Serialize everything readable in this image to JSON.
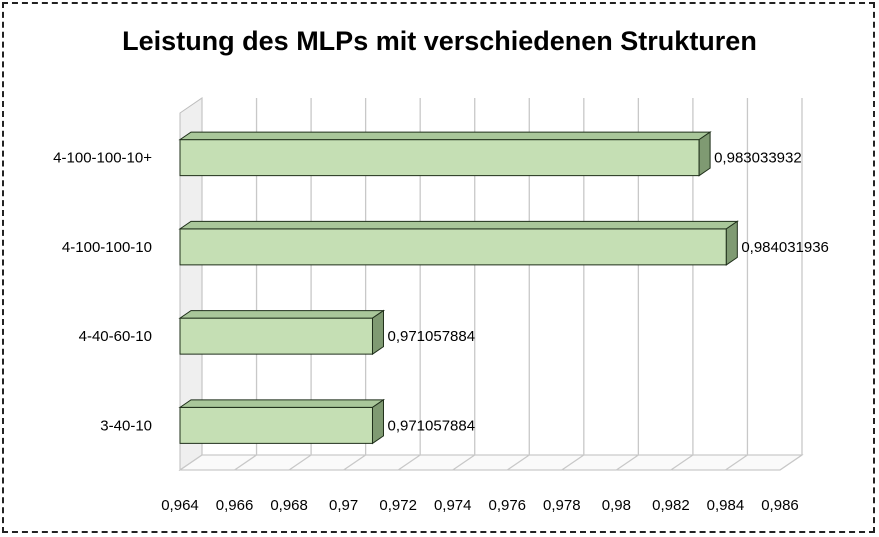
{
  "chart_data": {
    "type": "bar",
    "orientation": "horizontal",
    "title": "Leistung des MLPs mit verschiedenen Strukturen",
    "categories": [
      "3-40-10",
      "4-40-60-10",
      "4-100-100-10",
      "4-100-100-10+"
    ],
    "values": [
      0.971057884,
      0.971057884,
      0.984031936,
      0.983033932
    ],
    "data_labels": [
      "0,971057884",
      "0,971057884",
      "0,984031936",
      "0,983033932"
    ],
    "xlim": [
      0.964,
      0.986
    ],
    "x_ticks": [
      "0,964",
      "0,966",
      "0,968",
      "0,97",
      "0,972",
      "0,974",
      "0,976",
      "0,978",
      "0,98",
      "0,982",
      "0,984",
      "0,986"
    ],
    "grid": true,
    "legend": "none",
    "colors": {
      "bar_front": "#c5dfb4",
      "bar_top": "#a9c79a",
      "bar_side": "#7f9a72",
      "bar_stroke": "#1f2f1a",
      "grid": "#c8c8c8"
    }
  }
}
